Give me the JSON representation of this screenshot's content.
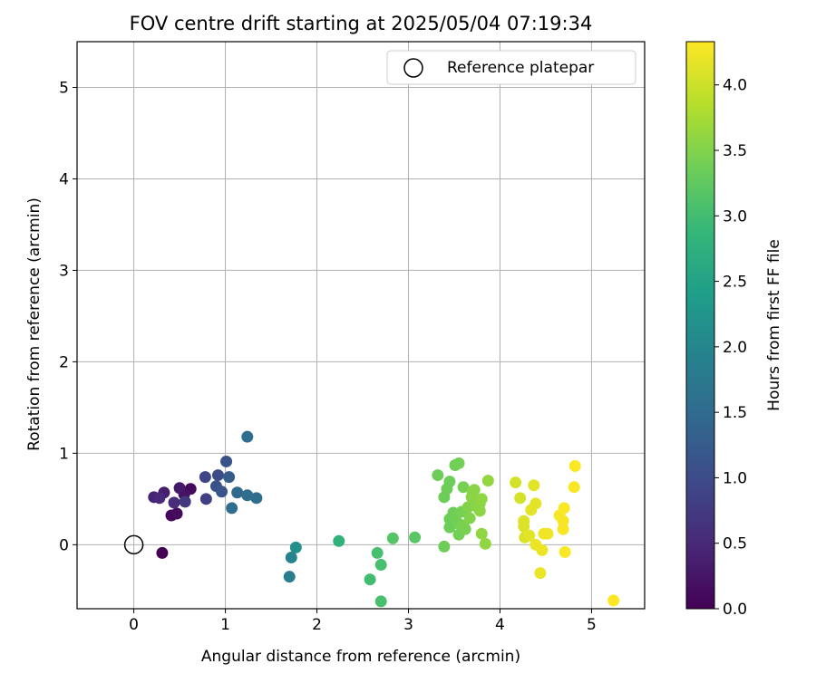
{
  "chart_data": {
    "type": "scatter",
    "title": "FOV centre drift starting at 2025/05/04 07:19:34",
    "xlabel": "Angular distance from reference (arcmin)",
    "ylabel": "Rotation from reference (arcmin)",
    "xlim": [
      -0.62,
      5.58
    ],
    "ylim": [
      -0.7,
      5.5
    ],
    "xticks": [
      0,
      1,
      2,
      3,
      4,
      5
    ],
    "yticks": [
      0,
      1,
      2,
      3,
      4,
      5
    ],
    "grid": true,
    "legend": {
      "placement": "upper-right",
      "entries": [
        {
          "label": "Reference platepar",
          "marker": "open-circle",
          "x": 0,
          "y": 0
        }
      ]
    },
    "colorbar": {
      "label": "Hours from first FF file",
      "colormap": "viridis",
      "range": [
        0,
        4.33
      ],
      "ticks": [
        "0.0",
        "0.5",
        "1.0",
        "1.5",
        "2.0",
        "2.5",
        "3.0",
        "3.5",
        "4.0"
      ]
    },
    "colormap_stops": [
      "#440154",
      "#482878",
      "#3e4989",
      "#31688e",
      "#26828e",
      "#1f9e89",
      "#35b779",
      "#6ece58",
      "#b5de2b",
      "#fde725"
    ],
    "points": [
      {
        "x": 0.31,
        "y": -0.09,
        "c": 0.0
      },
      {
        "x": 0.41,
        "y": 0.32,
        "c": 0.08
      },
      {
        "x": 0.47,
        "y": 0.34,
        "c": 0.12
      },
      {
        "x": 0.62,
        "y": 0.61,
        "c": 0.1
      },
      {
        "x": 0.55,
        "y": 0.55,
        "c": 0.2
      },
      {
        "x": 0.5,
        "y": 0.62,
        "c": 0.28
      },
      {
        "x": 0.33,
        "y": 0.57,
        "c": 0.35
      },
      {
        "x": 0.22,
        "y": 0.52,
        "c": 0.42
      },
      {
        "x": 0.28,
        "y": 0.51,
        "c": 0.48
      },
      {
        "x": 0.44,
        "y": 0.46,
        "c": 0.55
      },
      {
        "x": 0.56,
        "y": 0.47,
        "c": 0.7
      },
      {
        "x": 0.79,
        "y": 0.5,
        "c": 0.82
      },
      {
        "x": 0.78,
        "y": 0.74,
        "c": 0.9
      },
      {
        "x": 0.92,
        "y": 0.76,
        "c": 1.0
      },
      {
        "x": 0.9,
        "y": 0.64,
        "c": 1.08
      },
      {
        "x": 0.96,
        "y": 0.58,
        "c": 1.15
      },
      {
        "x": 1.01,
        "y": 0.91,
        "c": 1.1
      },
      {
        "x": 1.04,
        "y": 0.74,
        "c": 1.25
      },
      {
        "x": 1.13,
        "y": 0.57,
        "c": 1.45
      },
      {
        "x": 1.07,
        "y": 0.4,
        "c": 1.55
      },
      {
        "x": 1.24,
        "y": 0.54,
        "c": 1.55
      },
      {
        "x": 1.34,
        "y": 0.51,
        "c": 1.55
      },
      {
        "x": 1.24,
        "y": 1.18,
        "c": 1.55
      },
      {
        "x": 1.7,
        "y": -0.35,
        "c": 1.85
      },
      {
        "x": 1.72,
        "y": -0.14,
        "c": 1.95
      },
      {
        "x": 1.77,
        "y": -0.03,
        "c": 2.15
      },
      {
        "x": 2.24,
        "y": 0.04,
        "c": 2.8
      },
      {
        "x": 2.58,
        "y": -0.38,
        "c": 3.0
      },
      {
        "x": 2.66,
        "y": -0.09,
        "c": 3.05
      },
      {
        "x": 2.7,
        "y": -0.22,
        "c": 3.05
      },
      {
        "x": 2.7,
        "y": -0.62,
        "c": 3.05
      },
      {
        "x": 2.83,
        "y": 0.07,
        "c": 3.15
      },
      {
        "x": 3.07,
        "y": 0.08,
        "c": 3.2
      },
      {
        "x": 3.32,
        "y": 0.76,
        "c": 3.35
      },
      {
        "x": 3.39,
        "y": 0.52,
        "c": 3.35
      },
      {
        "x": 3.39,
        "y": -0.02,
        "c": 3.35
      },
      {
        "x": 3.42,
        "y": 0.61,
        "c": 3.35
      },
      {
        "x": 3.45,
        "y": 0.69,
        "c": 3.35
      },
      {
        "x": 3.45,
        "y": 0.28,
        "c": 3.35
      },
      {
        "x": 3.45,
        "y": 0.19,
        "c": 3.35
      },
      {
        "x": 3.49,
        "y": 0.35,
        "c": 3.35
      },
      {
        "x": 3.51,
        "y": 0.3,
        "c": 3.38
      },
      {
        "x": 3.51,
        "y": 0.87,
        "c": 3.38
      },
      {
        "x": 3.55,
        "y": 0.89,
        "c": 3.4
      },
      {
        "x": 3.55,
        "y": 0.23,
        "c": 3.4
      },
      {
        "x": 3.55,
        "y": 0.11,
        "c": 3.4
      },
      {
        "x": 3.58,
        "y": 0.36,
        "c": 3.42
      },
      {
        "x": 3.6,
        "y": 0.63,
        "c": 3.42
      },
      {
        "x": 3.6,
        "y": 0.21,
        "c": 3.45
      },
      {
        "x": 3.62,
        "y": 0.17,
        "c": 3.45
      },
      {
        "x": 3.65,
        "y": 0.41,
        "c": 3.5
      },
      {
        "x": 3.67,
        "y": 0.29,
        "c": 3.5
      },
      {
        "x": 3.69,
        "y": 0.52,
        "c": 3.55
      },
      {
        "x": 3.7,
        "y": 0.58,
        "c": 3.55
      },
      {
        "x": 3.72,
        "y": 0.6,
        "c": 3.55
      },
      {
        "x": 3.74,
        "y": 0.42,
        "c": 3.55
      },
      {
        "x": 3.78,
        "y": 0.45,
        "c": 3.58
      },
      {
        "x": 3.78,
        "y": 0.37,
        "c": 3.58
      },
      {
        "x": 3.8,
        "y": 0.5,
        "c": 3.6
      },
      {
        "x": 3.8,
        "y": 0.12,
        "c": 3.6
      },
      {
        "x": 3.84,
        "y": 0.01,
        "c": 3.6
      },
      {
        "x": 3.87,
        "y": 0.7,
        "c": 3.62
      },
      {
        "x": 4.17,
        "y": 0.68,
        "c": 4.05
      },
      {
        "x": 4.22,
        "y": 0.51,
        "c": 4.05
      },
      {
        "x": 4.26,
        "y": 0.26,
        "c": 4.1
      },
      {
        "x": 4.26,
        "y": 0.2,
        "c": 4.1
      },
      {
        "x": 4.27,
        "y": 0.08,
        "c": 4.1
      },
      {
        "x": 4.32,
        "y": 0.1,
        "c": 4.15
      },
      {
        "x": 4.34,
        "y": 0.38,
        "c": 4.15
      },
      {
        "x": 4.37,
        "y": 0.65,
        "c": 4.15
      },
      {
        "x": 4.39,
        "y": 0.45,
        "c": 4.15
      },
      {
        "x": 4.39,
        "y": 0.0,
        "c": 4.2
      },
      {
        "x": 4.44,
        "y": -0.31,
        "c": 4.2
      },
      {
        "x": 4.46,
        "y": -0.06,
        "c": 4.2
      },
      {
        "x": 4.48,
        "y": 0.12,
        "c": 4.25
      },
      {
        "x": 4.52,
        "y": 0.12,
        "c": 4.25
      },
      {
        "x": 4.65,
        "y": 0.32,
        "c": 4.28
      },
      {
        "x": 4.69,
        "y": 0.26,
        "c": 4.28
      },
      {
        "x": 4.69,
        "y": 0.17,
        "c": 4.28
      },
      {
        "x": 4.7,
        "y": 0.4,
        "c": 4.3
      },
      {
        "x": 4.71,
        "y": -0.08,
        "c": 4.3
      },
      {
        "x": 4.81,
        "y": 0.63,
        "c": 4.3
      },
      {
        "x": 4.82,
        "y": 0.86,
        "c": 4.32
      },
      {
        "x": 5.24,
        "y": -0.61,
        "c": 4.33
      }
    ]
  }
}
